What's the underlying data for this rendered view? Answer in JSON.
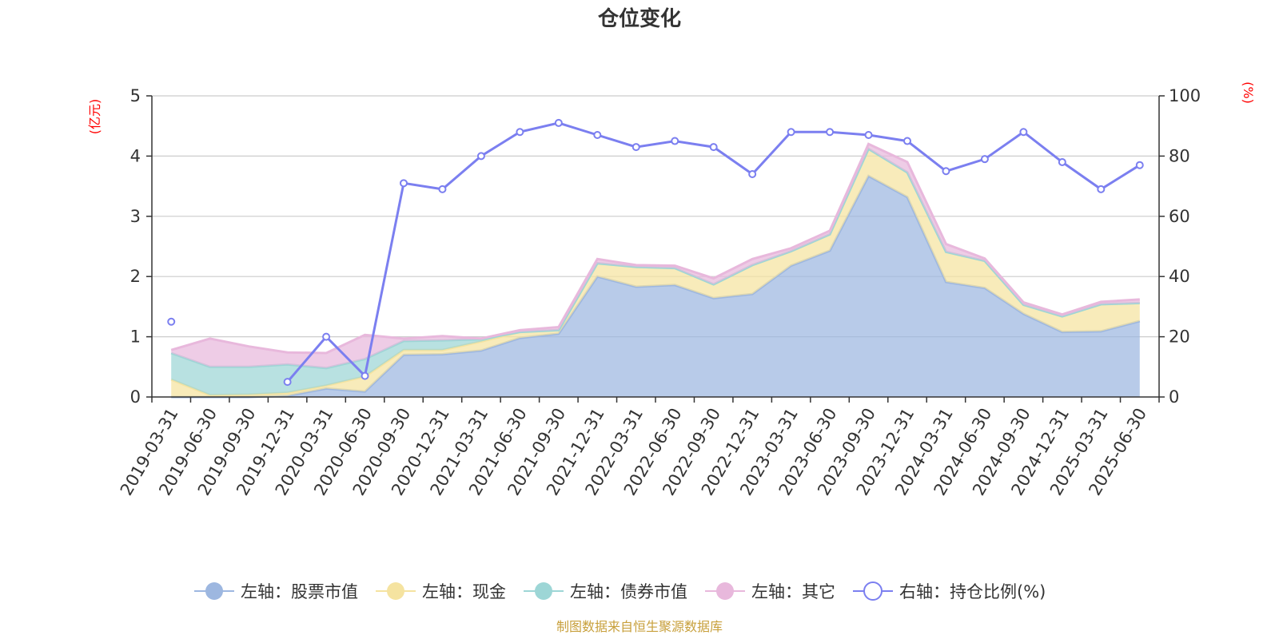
{
  "chart_data": {
    "type": "area",
    "title": "仓位变化",
    "left_unit": "(亿元)",
    "right_unit": "(%)",
    "categories": [
      "2019-03-31",
      "2019-06-30",
      "2019-09-30",
      "2019-12-31",
      "2020-03-31",
      "2020-06-30",
      "2020-09-30",
      "2020-12-31",
      "2021-03-31",
      "2021-06-30",
      "2021-09-30",
      "2021-12-31",
      "2022-03-31",
      "2022-06-30",
      "2022-09-30",
      "2022-12-31",
      "2023-03-31",
      "2023-06-30",
      "2023-09-30",
      "2023-12-31",
      "2024-03-31",
      "2024-06-30",
      "2024-09-30",
      "2024-12-31",
      "2025-03-31",
      "2025-06-30"
    ],
    "left_axis": {
      "min": 0,
      "max": 5,
      "ticks": [
        "0",
        "1",
        "2",
        "3",
        "4",
        "5"
      ]
    },
    "right_axis": {
      "min": 0,
      "max": 100,
      "ticks": [
        "0",
        "20",
        "40",
        "60",
        "80",
        "100"
      ]
    },
    "stack_series": [
      {
        "name": "左轴：股票市值",
        "color": "#9db7e0",
        "values": [
          0,
          0,
          0,
          0.02,
          0.14,
          0.09,
          0.7,
          0.71,
          0.77,
          0.98,
          1.05,
          2.0,
          1.83,
          1.86,
          1.64,
          1.71,
          2.18,
          2.43,
          3.67,
          3.32,
          1.91,
          1.81,
          1.38,
          1.08,
          1.09,
          1.26
        ]
      },
      {
        "name": "左轴：现金",
        "color": "#f5e3a0",
        "values": [
          0.29,
          0.03,
          0.04,
          0.05,
          0.05,
          0.25,
          0.08,
          0.07,
          0.15,
          0.1,
          0.06,
          0.22,
          0.33,
          0.28,
          0.23,
          0.48,
          0.24,
          0.27,
          0.45,
          0.41,
          0.5,
          0.45,
          0.15,
          0.26,
          0.45,
          0.3
        ]
      },
      {
        "name": "左轴：债券市值",
        "color": "#9dd6d6",
        "values": [
          0.44,
          0.47,
          0.46,
          0.47,
          0.29,
          0.29,
          0.15,
          0.16,
          0.04,
          0,
          0,
          0,
          0,
          0,
          0,
          0,
          0,
          0,
          0,
          0,
          0,
          0,
          0,
          0,
          0,
          0
        ]
      },
      {
        "name": "左轴：其它",
        "color": "#e8b8dc",
        "values": [
          0.05,
          0.47,
          0.34,
          0.2,
          0.25,
          0.4,
          0.04,
          0.07,
          0.01,
          0.03,
          0.05,
          0.07,
          0.03,
          0.04,
          0.1,
          0.1,
          0.05,
          0.06,
          0.08,
          0.17,
          0.13,
          0.04,
          0.04,
          0.03,
          0.04,
          0.06
        ]
      }
    ],
    "line_series": {
      "name": "右轴：持仓比例(%)",
      "color": "#7b7ff0",
      "values": [
        25,
        null,
        null,
        5,
        20,
        7,
        71,
        69,
        80,
        88,
        91,
        87,
        83,
        85,
        83,
        74,
        88,
        88,
        87,
        85,
        75,
        79,
        88,
        78,
        69,
        77
      ]
    },
    "grid": true,
    "legend_position": "bottom"
  },
  "footer": {
    "source": "制图数据来自恒生聚源数据库"
  }
}
